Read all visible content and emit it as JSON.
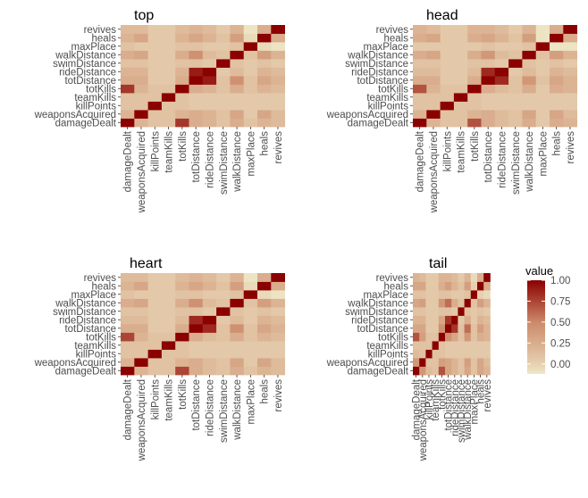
{
  "variables": [
    "damageDealt",
    "weaponsAcquired",
    "killPoints",
    "teamKills",
    "totKills",
    "totDistance",
    "rideDistance",
    "swimDistance",
    "walkDistance",
    "maxPlace",
    "heals",
    "revives"
  ],
  "colors": {
    "low": "#EEE8C8",
    "zero": "#E6D0B0",
    "mid": "#CC8A6A",
    "high": "#8B0000"
  },
  "chart_data": [
    {
      "type": "heatmap",
      "title": "top",
      "x": [
        "damageDealt",
        "weaponsAcquired",
        "killPoints",
        "teamKills",
        "totKills",
        "totDistance",
        "rideDistance",
        "swimDistance",
        "walkDistance",
        "maxPlace",
        "heals",
        "revives"
      ],
      "y": [
        "damageDealt",
        "weaponsAcquired",
        "killPoints",
        "teamKills",
        "totKills",
        "totDistance",
        "rideDistance",
        "swimDistance",
        "walkDistance",
        "maxPlace",
        "heals",
        "revives"
      ],
      "values": [
        [
          1.0,
          0.2,
          0.1,
          0.1,
          0.8,
          0.25,
          0.2,
          0.1,
          0.25,
          0.1,
          0.2,
          0.15
        ],
        [
          0.2,
          1.0,
          0.1,
          0.1,
          0.2,
          0.25,
          0.2,
          0.1,
          0.3,
          0.05,
          0.3,
          0.15
        ],
        [
          0.1,
          0.1,
          1.0,
          0.1,
          0.1,
          0.05,
          0.05,
          0.05,
          0.05,
          0.05,
          0.05,
          0.05
        ],
        [
          0.1,
          0.1,
          0.1,
          1.0,
          0.1,
          0.05,
          0.05,
          0.05,
          0.05,
          0.05,
          0.05,
          0.05
        ],
        [
          0.8,
          0.2,
          0.1,
          0.1,
          1.0,
          0.25,
          0.2,
          0.1,
          0.25,
          0.1,
          0.2,
          0.15
        ],
        [
          0.25,
          0.25,
          0.05,
          0.05,
          0.25,
          1.0,
          0.9,
          0.1,
          0.45,
          0.1,
          0.3,
          0.2
        ],
        [
          0.2,
          0.2,
          0.05,
          0.05,
          0.2,
          0.9,
          1.0,
          0.05,
          0.15,
          0.05,
          0.2,
          0.15
        ],
        [
          0.1,
          0.1,
          0.05,
          0.05,
          0.1,
          0.1,
          0.05,
          1.0,
          0.1,
          0.05,
          0.1,
          0.05
        ],
        [
          0.25,
          0.3,
          0.05,
          0.05,
          0.25,
          0.45,
          0.15,
          0.1,
          1.0,
          0.1,
          0.35,
          0.2
        ],
        [
          0.1,
          0.05,
          0.05,
          0.05,
          0.1,
          0.1,
          0.05,
          0.05,
          0.1,
          1.0,
          -0.05,
          -0.1
        ],
        [
          0.2,
          0.3,
          0.05,
          0.05,
          0.2,
          0.3,
          0.2,
          0.1,
          0.35,
          -0.05,
          1.0,
          0.25
        ],
        [
          0.15,
          0.15,
          0.05,
          0.05,
          0.15,
          0.2,
          0.15,
          0.05,
          0.2,
          -0.1,
          0.25,
          1.0
        ]
      ]
    },
    {
      "type": "heatmap",
      "title": "head",
      "x": [
        "damageDealt",
        "weaponsAcquired",
        "killPoints",
        "teamKills",
        "totKills",
        "totDistance",
        "rideDistance",
        "swimDistance",
        "walkDistance",
        "maxPlace",
        "heals",
        "revives"
      ],
      "y": [
        "damageDealt",
        "weaponsAcquired",
        "killPoints",
        "teamKills",
        "totKills",
        "totDistance",
        "rideDistance",
        "swimDistance",
        "walkDistance",
        "maxPlace",
        "heals",
        "revives"
      ],
      "values": [
        [
          1.0,
          0.2,
          0.1,
          0.1,
          0.7,
          0.25,
          0.15,
          0.1,
          0.25,
          0.05,
          0.25,
          0.2
        ],
        [
          0.2,
          1.0,
          0.1,
          0.1,
          0.2,
          0.25,
          0.15,
          0.1,
          0.3,
          0.05,
          0.3,
          0.15
        ],
        [
          0.1,
          0.1,
          1.0,
          0.1,
          0.1,
          0.05,
          0.05,
          0.05,
          0.05,
          0.05,
          0.05,
          0.05
        ],
        [
          0.1,
          0.1,
          0.1,
          1.0,
          0.1,
          0.05,
          0.05,
          0.05,
          0.05,
          0.05,
          0.05,
          0.05
        ],
        [
          0.7,
          0.2,
          0.1,
          0.1,
          1.0,
          0.25,
          0.15,
          0.1,
          0.25,
          0.05,
          0.25,
          0.2
        ],
        [
          0.25,
          0.25,
          0.05,
          0.05,
          0.25,
          1.0,
          0.85,
          0.1,
          0.4,
          0.1,
          0.3,
          0.2
        ],
        [
          0.15,
          0.15,
          0.05,
          0.05,
          0.15,
          0.85,
          1.0,
          0.05,
          0.15,
          0.05,
          0.2,
          0.15
        ],
        [
          0.1,
          0.1,
          0.05,
          0.05,
          0.1,
          0.1,
          0.05,
          1.0,
          0.1,
          0.05,
          0.1,
          0.05
        ],
        [
          0.25,
          0.3,
          0.05,
          0.05,
          0.25,
          0.4,
          0.15,
          0.1,
          1.0,
          0.1,
          0.35,
          0.2
        ],
        [
          0.05,
          0.05,
          0.05,
          0.05,
          0.05,
          0.1,
          0.05,
          0.05,
          0.1,
          1.0,
          -0.1,
          -0.1
        ],
        [
          0.25,
          0.3,
          0.05,
          0.05,
          0.25,
          0.3,
          0.2,
          0.1,
          0.35,
          -0.1,
          1.0,
          0.25
        ],
        [
          0.2,
          0.15,
          0.05,
          0.05,
          0.2,
          0.2,
          0.15,
          0.05,
          0.2,
          -0.1,
          0.25,
          1.0
        ]
      ]
    },
    {
      "type": "heatmap",
      "title": "heart",
      "x": [
        "damageDealt",
        "weaponsAcquired",
        "killPoints",
        "teamKills",
        "totKills",
        "totDistance",
        "rideDistance",
        "swimDistance",
        "walkDistance",
        "maxPlace",
        "heals",
        "revives"
      ],
      "y": [
        "damageDealt",
        "weaponsAcquired",
        "killPoints",
        "teamKills",
        "totKills",
        "totDistance",
        "rideDistance",
        "swimDistance",
        "walkDistance",
        "maxPlace",
        "heals",
        "revives"
      ],
      "values": [
        [
          1.0,
          0.2,
          0.1,
          0.1,
          0.75,
          0.25,
          0.15,
          0.1,
          0.25,
          0.1,
          0.2,
          0.15
        ],
        [
          0.2,
          1.0,
          0.1,
          0.1,
          0.2,
          0.25,
          0.15,
          0.1,
          0.3,
          0.05,
          0.3,
          0.15
        ],
        [
          0.1,
          0.1,
          1.0,
          0.1,
          0.1,
          0.05,
          0.05,
          0.05,
          0.05,
          0.05,
          0.05,
          0.05
        ],
        [
          0.1,
          0.1,
          0.1,
          1.0,
          0.1,
          0.05,
          0.05,
          0.05,
          0.05,
          0.05,
          0.05,
          0.05
        ],
        [
          0.75,
          0.2,
          0.1,
          0.1,
          1.0,
          0.25,
          0.15,
          0.1,
          0.25,
          0.1,
          0.2,
          0.15
        ],
        [
          0.25,
          0.25,
          0.05,
          0.05,
          0.25,
          1.0,
          0.85,
          0.1,
          0.45,
          0.1,
          0.3,
          0.2
        ],
        [
          0.15,
          0.15,
          0.05,
          0.05,
          0.15,
          0.85,
          1.0,
          0.05,
          0.15,
          0.05,
          0.2,
          0.15
        ],
        [
          0.1,
          0.1,
          0.05,
          0.05,
          0.1,
          0.1,
          0.05,
          1.0,
          0.1,
          0.05,
          0.1,
          0.05
        ],
        [
          0.25,
          0.3,
          0.05,
          0.05,
          0.25,
          0.45,
          0.15,
          0.1,
          1.0,
          0.1,
          0.35,
          0.2
        ],
        [
          0.1,
          0.05,
          0.05,
          0.05,
          0.1,
          0.1,
          0.05,
          0.05,
          0.1,
          1.0,
          -0.05,
          -0.1
        ],
        [
          0.2,
          0.3,
          0.05,
          0.05,
          0.2,
          0.3,
          0.2,
          0.1,
          0.35,
          -0.05,
          1.0,
          0.25
        ],
        [
          0.15,
          0.15,
          0.05,
          0.05,
          0.15,
          0.2,
          0.15,
          0.05,
          0.2,
          -0.1,
          0.25,
          1.0
        ]
      ]
    },
    {
      "type": "heatmap",
      "title": "tail",
      "x": [
        "damageDealt",
        "weaponsAcquired",
        "killPoints",
        "teamKills",
        "totKills",
        "totDistance",
        "rideDistance",
        "swimDistance",
        "walkDistance",
        "maxPlace",
        "heals",
        "revives"
      ],
      "y": [
        "damageDealt",
        "weaponsAcquired",
        "killPoints",
        "teamKills",
        "totKills",
        "totDistance",
        "rideDistance",
        "swimDistance",
        "walkDistance",
        "maxPlace",
        "heals",
        "revives"
      ],
      "values": [
        [
          1.0,
          0.4,
          0.15,
          0.1,
          0.7,
          0.3,
          0.2,
          0.1,
          0.3,
          0.1,
          0.3,
          0.2
        ],
        [
          0.4,
          1.0,
          0.1,
          0.1,
          0.35,
          0.3,
          0.2,
          0.1,
          0.35,
          0.1,
          0.3,
          0.15
        ],
        [
          0.15,
          0.1,
          1.0,
          0.1,
          0.1,
          0.05,
          0.05,
          0.05,
          0.05,
          0.05,
          0.05,
          0.05
        ],
        [
          0.1,
          0.1,
          0.1,
          1.0,
          0.1,
          0.05,
          0.05,
          0.05,
          0.05,
          0.05,
          0.05,
          0.05
        ],
        [
          0.7,
          0.35,
          0.1,
          0.1,
          1.0,
          0.45,
          0.3,
          0.1,
          0.4,
          0.1,
          0.25,
          0.2
        ],
        [
          0.3,
          0.3,
          0.05,
          0.05,
          0.45,
          1.0,
          0.8,
          0.1,
          0.6,
          0.1,
          0.35,
          0.2
        ],
        [
          0.2,
          0.2,
          0.05,
          0.05,
          0.3,
          0.8,
          1.0,
          0.05,
          0.25,
          0.05,
          0.2,
          0.15
        ],
        [
          0.1,
          0.1,
          0.05,
          0.05,
          0.1,
          0.1,
          0.05,
          1.0,
          0.1,
          0.05,
          0.1,
          0.05
        ],
        [
          0.3,
          0.35,
          0.05,
          0.05,
          0.4,
          0.6,
          0.25,
          0.1,
          1.0,
          0.1,
          0.35,
          0.2
        ],
        [
          0.1,
          0.1,
          0.05,
          0.05,
          0.1,
          0.1,
          0.05,
          0.05,
          0.1,
          1.0,
          0.0,
          -0.05
        ],
        [
          0.3,
          0.3,
          0.05,
          0.05,
          0.25,
          0.35,
          0.2,
          0.1,
          0.35,
          0.0,
          1.0,
          0.25
        ],
        [
          0.2,
          0.15,
          0.05,
          0.05,
          0.2,
          0.2,
          0.15,
          0.05,
          0.2,
          -0.05,
          0.25,
          1.0
        ]
      ]
    }
  ],
  "legend": {
    "title": "value",
    "ticks": [
      1.0,
      0.75,
      0.5,
      0.25,
      0.0
    ],
    "tick_labels": [
      "1.00",
      "0.75",
      "0.50",
      "0.25",
      "0.00"
    ],
    "range": [
      -0.12,
      1.0
    ]
  }
}
